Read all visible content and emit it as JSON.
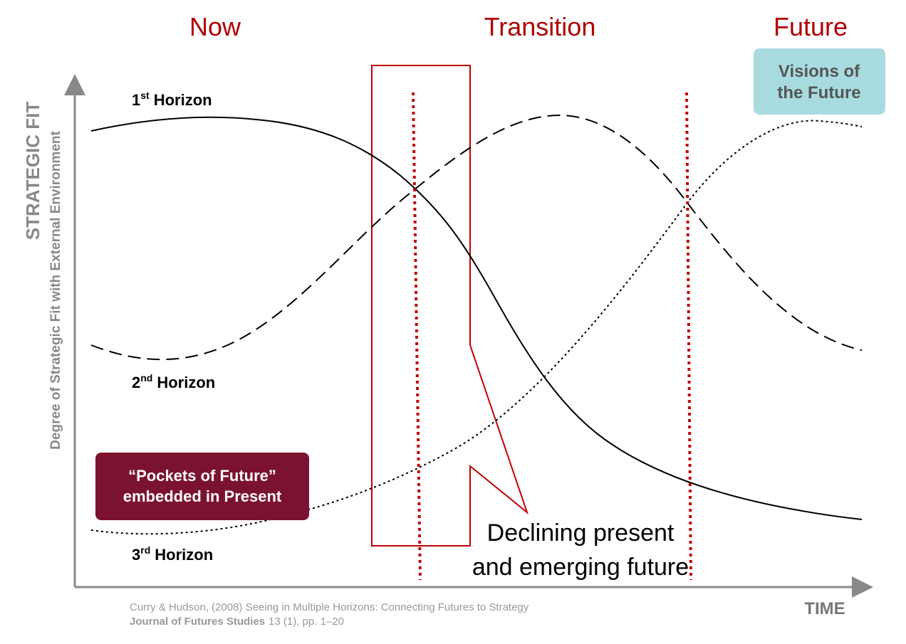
{
  "phases": [
    "Now",
    "Transition",
    "Future"
  ],
  "visions": [
    "Visions of",
    "the Future"
  ],
  "y_axis": {
    "title": "STRATEGIC FIT",
    "subtitle": "Degree of Strategic Fit with External Environment"
  },
  "x_axis": {
    "title": "TIME"
  },
  "horizons": [
    {
      "number": "1",
      "suffix": "st",
      "label": "Horizon"
    },
    {
      "number": "2",
      "suffix": "nd",
      "label": "Horizon"
    },
    {
      "number": "3",
      "suffix": "rd",
      "label": "Horizon"
    }
  ],
  "pockets": [
    "“Pockets of Future”",
    "embedded in Present"
  ],
  "callout": [
    "Declining present",
    "and emerging future"
  ],
  "citation": {
    "line1": "Curry & Hudson, (2008) Seeing in Multiple Horizons: Connecting Futures to Strategy",
    "journal": "Journal of Futures Studies",
    "details": "13 (1), pp. 1–20"
  }
}
